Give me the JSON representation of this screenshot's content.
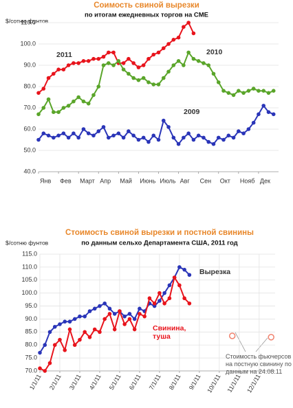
{
  "chart_data": [
    {
      "type": "scatter",
      "title": "Соимость свиной вырезки",
      "subtitle": "по итогам ежедневных торгов на CME",
      "y_label": "$/сотню фунтов",
      "x": [
        0,
        0.25,
        0.5,
        0.75,
        1,
        1.25,
        1.5,
        1.75,
        2,
        2.25,
        2.5,
        2.75,
        3,
        3.25,
        3.5,
        3.75,
        4,
        4.25,
        4.5,
        4.75,
        5,
        5.25,
        5.5,
        5.75,
        6,
        6.25,
        6.5,
        6.75,
        7,
        7.25,
        7.5,
        7.75,
        8,
        8.25,
        8.5,
        8.75,
        9,
        9.25,
        9.5,
        9.75,
        10,
        10.25,
        10.5,
        10.75,
        11,
        11.25,
        11.5,
        11.75
      ],
      "xlim": [
        0,
        12
      ],
      "xticks": [
        {
          "value": 0,
          "label": "Янв"
        },
        {
          "value": 1,
          "label": "Фев"
        },
        {
          "value": 2,
          "label": "Март"
        },
        {
          "value": 3,
          "label": "Апр"
        },
        {
          "value": 4,
          "label": "Май"
        },
        {
          "value": 5,
          "label": "Июнь"
        },
        {
          "value": 6,
          "label": "Июль"
        },
        {
          "value": 7,
          "label": "Авг"
        },
        {
          "value": 8,
          "label": "Сен"
        },
        {
          "value": 9,
          "label": "Окт"
        },
        {
          "value": 10,
          "label": "Нояб"
        },
        {
          "value": 11,
          "label": "Дек"
        }
      ],
      "ylim": [
        40,
        110
      ],
      "yticks": [
        {
          "value": 40,
          "label": "40.0"
        },
        {
          "value": 50,
          "label": "50.0"
        },
        {
          "value": 60,
          "label": "60.0"
        },
        {
          "value": 70,
          "label": "70.0"
        },
        {
          "value": 80,
          "label": "80.0"
        },
        {
          "value": 90,
          "label": "90.0"
        },
        {
          "value": 100,
          "label": "100.0"
        },
        {
          "value": 110,
          "label": "110.0"
        }
      ],
      "grid": true,
      "series": [
        {
          "name": "2011",
          "color": "#e8141c",
          "values": [
            77,
            79,
            84,
            86,
            88,
            88,
            90,
            91,
            91,
            92,
            92,
            93,
            93,
            94,
            96,
            96,
            91,
            91,
            93,
            91,
            89,
            90,
            93,
            95,
            96,
            98,
            100,
            102,
            103,
            108,
            110,
            105,
            null,
            null,
            null,
            null,
            null,
            null,
            null,
            null,
            null,
            null,
            null,
            null,
            null,
            null,
            null,
            null
          ]
        },
        {
          "name": "2010",
          "color": "#5aa52a",
          "values": [
            67,
            70,
            74,
            68,
            68,
            70,
            71,
            73,
            75,
            73,
            72,
            76,
            80,
            90,
            91,
            90,
            92,
            88,
            86,
            84,
            83,
            84,
            82,
            81,
            81,
            84,
            87,
            90,
            92,
            90,
            96,
            93,
            92,
            91,
            90,
            86,
            82,
            78,
            77,
            76,
            78,
            77,
            78,
            79,
            78,
            78,
            77,
            78
          ]
        },
        {
          "name": "2009",
          "color": "#2a35b8",
          "values": [
            55,
            58,
            57,
            56,
            57,
            58,
            56,
            58,
            56,
            60,
            58,
            57,
            59,
            61,
            56,
            57,
            58,
            56,
            59,
            57,
            55,
            56,
            54,
            57,
            55,
            64,
            61,
            56,
            53,
            56,
            58,
            55,
            57,
            56,
            54,
            53,
            56,
            55,
            57,
            56,
            59,
            58,
            60,
            63,
            67,
            71,
            68,
            67
          ]
        }
      ]
    },
    {
      "type": "scatter",
      "title": "Стоимость свиной вырезки и постной свинины",
      "subtitle": "по данным сельхо Департамента США, 2011 год",
      "y_label": "$/сотню фунтов",
      "x": [
        0,
        0.25,
        0.5,
        0.75,
        1,
        1.25,
        1.5,
        1.75,
        2,
        2.25,
        2.5,
        2.75,
        3,
        3.25,
        3.5,
        3.75,
        4,
        4.25,
        4.5,
        4.75,
        5,
        5.25,
        5.5,
        5.75,
        6,
        6.25,
        6.5,
        6.75,
        7,
        7.25,
        7.5
      ],
      "xlim": [
        0,
        11.8
      ],
      "xticks": [
        {
          "value": 0,
          "label": "1/1/11"
        },
        {
          "value": 1,
          "label": "2/1/11"
        },
        {
          "value": 2,
          "label": "3/1/11"
        },
        {
          "value": 3,
          "label": "4/1/11"
        },
        {
          "value": 4,
          "label": "5/1/11"
        },
        {
          "value": 5,
          "label": "6/1/11"
        },
        {
          "value": 6,
          "label": "7/1/11"
        },
        {
          "value": 7,
          "label": "8/1/11"
        },
        {
          "value": 8,
          "label": "9/1/11"
        },
        {
          "value": 9,
          "label": "10/1/11"
        },
        {
          "value": 10,
          "label": "11/1/11"
        },
        {
          "value": 11,
          "label": "12/1/11"
        }
      ],
      "ylim": [
        70,
        115
      ],
      "yticks": [
        {
          "value": 70,
          "label": "70.0"
        },
        {
          "value": 75,
          "label": "75.0"
        },
        {
          "value": 80,
          "label": "80.0"
        },
        {
          "value": 85,
          "label": "85.0"
        },
        {
          "value": 90,
          "label": "90.0"
        },
        {
          "value": 95,
          "label": "95.0"
        },
        {
          "value": 100,
          "label": "100.0"
        },
        {
          "value": 105,
          "label": "105.0"
        },
        {
          "value": 110,
          "label": "110.0"
        },
        {
          "value": 115,
          "label": "115.0"
        }
      ],
      "grid": true,
      "xgrid": true,
      "series": [
        {
          "name": "Вырезка",
          "color": "#2a35b8",
          "values": [
            77,
            80,
            85,
            87,
            88,
            89,
            89,
            90,
            91,
            91,
            93,
            94,
            95,
            96,
            94,
            92,
            93,
            91,
            92,
            90,
            94,
            93,
            96,
            95,
            97,
            100,
            103,
            106,
            110,
            109,
            107
          ]
        },
        {
          "name": "Свинина, туша",
          "color": "#e8141c",
          "values": [
            71,
            70,
            73,
            80,
            82,
            78,
            86,
            80,
            82,
            85,
            83,
            86,
            85,
            90,
            92,
            86,
            93,
            88,
            90,
            86,
            92,
            91,
            98,
            96,
            100,
            96,
            98,
            106,
            103,
            98,
            96
          ]
        }
      ],
      "futures": {
        "color": "#f0826e",
        "x": [
          9.65,
          11.6
        ],
        "values": [
          83.5,
          83
        ]
      },
      "annotation": "Стоимость фьючерсов на постную свинину по данным на 24.08.11"
    }
  ]
}
